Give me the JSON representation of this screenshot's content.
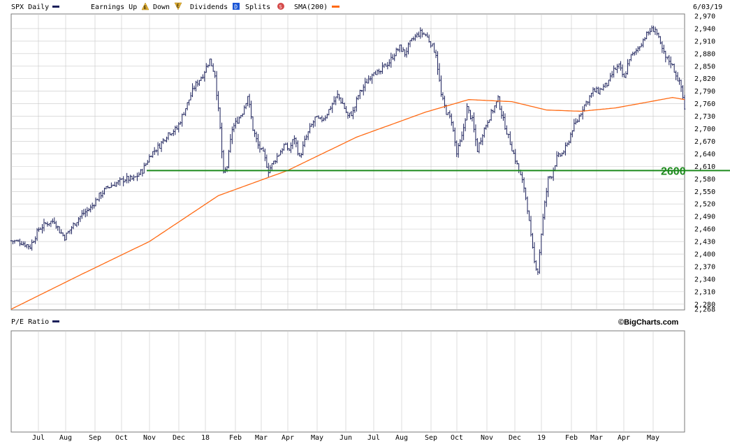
{
  "header": {
    "symbol_label": "SPX Daily",
    "earnings_up_label": "Earnings Up",
    "earnings_up_glyph": "E",
    "earnings_down_label": "Down",
    "earnings_down_glyph": "E",
    "dividends_label": "Dividends",
    "dividends_glyph": "D",
    "splits_label": "Splits",
    "splits_glyph": "S",
    "sma_label": "SMA(200)",
    "date": "6/03/19"
  },
  "pe_panel": {
    "label": "P/E Ratio",
    "brand": "©BigCharts.com"
  },
  "colors": {
    "price_bars": "#1a1f5a",
    "sma": "#ff6a13",
    "reference_line": "#1e8a1e",
    "grid": "#c8c8c8",
    "earnings_up": "#d4a017",
    "dividends": "#1a56d6",
    "splits": "#d44a4a"
  },
  "chart_data": {
    "type": "line",
    "series_type": "ohlc-bar",
    "x_tick_labels": [
      "Jul",
      "Aug",
      "Sep",
      "Oct",
      "Nov",
      "Dec",
      "18",
      "Feb",
      "Mar",
      "Apr",
      "May",
      "Jun",
      "Jul",
      "Aug",
      "Sep",
      "Oct",
      "Nov",
      "Dec",
      "19",
      "Feb",
      "Mar",
      "Apr",
      "May"
    ],
    "y_tick_labels": [
      "2,268",
      "2,280",
      "2,310",
      "2,340",
      "2,370",
      "2,400",
      "2,430",
      "2,460",
      "2,490",
      "2,520",
      "2,550",
      "2,580",
      "2,610",
      "2,640",
      "2,670",
      "2,700",
      "2,730",
      "2,760",
      "2,790",
      "2,820",
      "2,850",
      "2,880",
      "2,910",
      "2,940",
      "2,970"
    ],
    "ylim": [
      2268,
      2970
    ],
    "grid": true,
    "reference_line": {
      "value": 2600,
      "label": "2600"
    },
    "price_anchors": [
      {
        "t": 0,
        "v": 2432
      },
      {
        "t": 6,
        "v": 2428
      },
      {
        "t": 11,
        "v": 2418
      },
      {
        "t": 16,
        "v": 2460
      },
      {
        "t": 21,
        "v": 2475
      },
      {
        "t": 25,
        "v": 2480
      },
      {
        "t": 28,
        "v": 2455
      },
      {
        "t": 31,
        "v": 2440
      },
      {
        "t": 36,
        "v": 2470
      },
      {
        "t": 41,
        "v": 2495
      },
      {
        "t": 46,
        "v": 2510
      },
      {
        "t": 51,
        "v": 2540
      },
      {
        "t": 56,
        "v": 2560
      },
      {
        "t": 61,
        "v": 2570
      },
      {
        "t": 66,
        "v": 2580
      },
      {
        "t": 71,
        "v": 2580
      },
      {
        "t": 76,
        "v": 2600
      },
      {
        "t": 81,
        "v": 2640
      },
      {
        "t": 86,
        "v": 2660
      },
      {
        "t": 91,
        "v": 2690
      },
      {
        "t": 96,
        "v": 2700
      },
      {
        "t": 101,
        "v": 2750
      },
      {
        "t": 106,
        "v": 2800
      },
      {
        "t": 111,
        "v": 2830
      },
      {
        "t": 115,
        "v": 2865
      },
      {
        "t": 118,
        "v": 2830
      },
      {
        "t": 121,
        "v": 2700
      },
      {
        "t": 123,
        "v": 2590
      },
      {
        "t": 125,
        "v": 2610
      },
      {
        "t": 128,
        "v": 2700
      },
      {
        "t": 131,
        "v": 2720
      },
      {
        "t": 134,
        "v": 2740
      },
      {
        "t": 137,
        "v": 2780
      },
      {
        "t": 140,
        "v": 2700
      },
      {
        "t": 143,
        "v": 2660
      },
      {
        "t": 146,
        "v": 2640
      },
      {
        "t": 149,
        "v": 2600
      },
      {
        "t": 152,
        "v": 2620
      },
      {
        "t": 155,
        "v": 2640
      },
      {
        "t": 158,
        "v": 2660
      },
      {
        "t": 161,
        "v": 2650
      },
      {
        "t": 164,
        "v": 2680
      },
      {
        "t": 167,
        "v": 2630
      },
      {
        "t": 170,
        "v": 2670
      },
      {
        "t": 173,
        "v": 2700
      },
      {
        "t": 176,
        "v": 2725
      },
      {
        "t": 179,
        "v": 2720
      },
      {
        "t": 182,
        "v": 2730
      },
      {
        "t": 186,
        "v": 2760
      },
      {
        "t": 189,
        "v": 2780
      },
      {
        "t": 192,
        "v": 2760
      },
      {
        "t": 195,
        "v": 2730
      },
      {
        "t": 198,
        "v": 2740
      },
      {
        "t": 201,
        "v": 2780
      },
      {
        "t": 204,
        "v": 2800
      },
      {
        "t": 207,
        "v": 2820
      },
      {
        "t": 210,
        "v": 2840
      },
      {
        "t": 213,
        "v": 2830
      },
      {
        "t": 216,
        "v": 2850
      },
      {
        "t": 219,
        "v": 2860
      },
      {
        "t": 222,
        "v": 2880
      },
      {
        "t": 225,
        "v": 2895
      },
      {
        "t": 228,
        "v": 2880
      },
      {
        "t": 231,
        "v": 2905
      },
      {
        "t": 234,
        "v": 2920
      },
      {
        "t": 237,
        "v": 2930
      },
      {
        "t": 240,
        "v": 2925
      },
      {
        "t": 243,
        "v": 2905
      },
      {
        "t": 246,
        "v": 2880
      },
      {
        "t": 249,
        "v": 2780
      },
      {
        "t": 252,
        "v": 2740
      },
      {
        "t": 255,
        "v": 2720
      },
      {
        "t": 258,
        "v": 2640
      },
      {
        "t": 261,
        "v": 2680
      },
      {
        "t": 264,
        "v": 2750
      },
      {
        "t": 267,
        "v": 2720
      },
      {
        "t": 270,
        "v": 2650
      },
      {
        "t": 273,
        "v": 2690
      },
      {
        "t": 276,
        "v": 2720
      },
      {
        "t": 279,
        "v": 2745
      },
      {
        "t": 282,
        "v": 2770
      },
      {
        "t": 285,
        "v": 2720
      },
      {
        "t": 288,
        "v": 2680
      },
      {
        "t": 291,
        "v": 2640
      },
      {
        "t": 294,
        "v": 2600
      },
      {
        "t": 297,
        "v": 2560
      },
      {
        "t": 299,
        "v": 2510
      },
      {
        "t": 301,
        "v": 2440
      },
      {
        "t": 303,
        "v": 2380
      },
      {
        "t": 305,
        "v": 2360
      },
      {
        "t": 307,
        "v": 2450
      },
      {
        "t": 309,
        "v": 2520
      },
      {
        "t": 311,
        "v": 2580
      },
      {
        "t": 313,
        "v": 2590
      },
      {
        "t": 316,
        "v": 2630
      },
      {
        "t": 319,
        "v": 2640
      },
      {
        "t": 322,
        "v": 2660
      },
      {
        "t": 325,
        "v": 2700
      },
      {
        "t": 328,
        "v": 2720
      },
      {
        "t": 331,
        "v": 2750
      },
      {
        "t": 334,
        "v": 2770
      },
      {
        "t": 337,
        "v": 2790
      },
      {
        "t": 340,
        "v": 2790
      },
      {
        "t": 343,
        "v": 2800
      },
      {
        "t": 346,
        "v": 2810
      },
      {
        "t": 349,
        "v": 2840
      },
      {
        "t": 352,
        "v": 2850
      },
      {
        "t": 355,
        "v": 2820
      },
      {
        "t": 358,
        "v": 2870
      },
      {
        "t": 361,
        "v": 2880
      },
      {
        "t": 364,
        "v": 2900
      },
      {
        "t": 367,
        "v": 2920
      },
      {
        "t": 370,
        "v": 2935
      },
      {
        "t": 373,
        "v": 2940
      },
      {
        "t": 376,
        "v": 2900
      },
      {
        "t": 379,
        "v": 2870
      },
      {
        "t": 382,
        "v": 2860
      },
      {
        "t": 385,
        "v": 2830
      },
      {
        "t": 388,
        "v": 2800
      },
      {
        "t": 390,
        "v": 2750
      }
    ],
    "sma_anchors": [
      {
        "t": 0,
        "v": 2268
      },
      {
        "t": 40,
        "v": 2350
      },
      {
        "t": 80,
        "v": 2430
      },
      {
        "t": 120,
        "v": 2540
      },
      {
        "t": 160,
        "v": 2600
      },
      {
        "t": 200,
        "v": 2680
      },
      {
        "t": 240,
        "v": 2740
      },
      {
        "t": 265,
        "v": 2770
      },
      {
        "t": 290,
        "v": 2765
      },
      {
        "t": 310,
        "v": 2745
      },
      {
        "t": 330,
        "v": 2742
      },
      {
        "t": 350,
        "v": 2750
      },
      {
        "t": 370,
        "v": 2765
      },
      {
        "t": 383,
        "v": 2775
      },
      {
        "t": 390,
        "v": 2770
      }
    ]
  }
}
